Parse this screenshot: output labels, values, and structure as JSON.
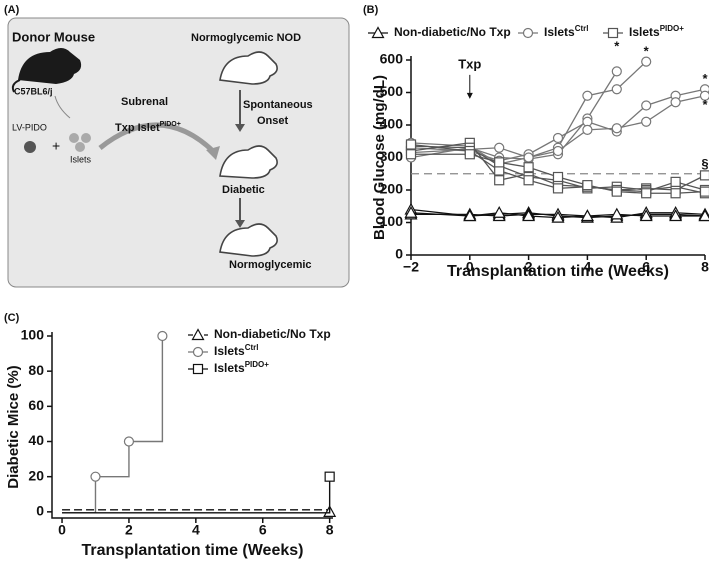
{
  "diagram": {
    "panel_label": "(A)",
    "donor_title": "Donor Mouse",
    "strain": "C57BL6/j",
    "vector": "LV-PIDO",
    "plus": "+",
    "islets": "Islets",
    "route": "Subrenal",
    "txp": "Txp Islet",
    "txp_sup": "PIDO+",
    "recipient_title": "Normoglycemic NOD",
    "onset_1": "Spontaneous",
    "onset_2": "Onset",
    "diabetic": "Diabetic",
    "normoglycemic": "Normoglycemic"
  },
  "chart_data": [
    {
      "type": "line",
      "panel_label": "(B)",
      "y_label": "Blood Glucose (mg/dL)",
      "x_label": "Transplantation time (Weeks)",
      "xlim": [
        -2,
        8
      ],
      "xticks": [
        {
          "value": -2,
          "label": "−2"
        },
        0,
        2,
        4,
        6,
        8
      ],
      "ylim": [
        0,
        600
      ],
      "yticks": [
        0,
        100,
        200,
        300,
        400,
        500,
        600
      ],
      "threshold": 250,
      "annotations": [
        {
          "text": "Txp",
          "x": 0,
          "y": 585
        },
        {
          "text": "*",
          "x": 5,
          "y": 640
        },
        {
          "text": "*",
          "x": 6,
          "y": 625
        },
        {
          "text": "*",
          "x": 8,
          "y": 540
        },
        {
          "text": "*",
          "x": 8,
          "y": 460
        },
        {
          "text": "§",
          "x": 8,
          "y": 278
        }
      ],
      "series": [
        {
          "name": "Non-diabetic/No Txp",
          "marker": "triangle",
          "color": "#111111",
          "mice": [
            {
              "x": [
                -2,
                0,
                1,
                2,
                3,
                4,
                5,
                6,
                7,
                8
              ],
              "values": [
                140,
                120,
                125,
                130,
                120,
                115,
                120,
                125,
                125,
                120
              ]
            },
            {
              "x": [
                -2,
                0,
                1,
                2,
                3,
                4,
                5,
                6,
                7,
                8
              ],
              "values": [
                125,
                125,
                120,
                125,
                125,
                120,
                115,
                130,
                130,
                125
              ]
            },
            {
              "x": [
                -2,
                0,
                1,
                2,
                3,
                4,
                5,
                6,
                7,
                8
              ],
              "values": [
                130,
                120,
                130,
                120,
                115,
                120,
                125,
                120,
                120,
                120
              ]
            }
          ]
        },
        {
          "name": "Islets",
          "superscript": "Ctrl",
          "marker": "circle",
          "color": "#777777",
          "mice": [
            {
              "x": [
                -2,
                0,
                1,
                2,
                3,
                4,
                5
              ],
              "values": [
                300,
                330,
                300,
                295,
                310,
                420,
                565
              ]
            },
            {
              "x": [
                -2,
                0,
                1,
                2,
                3,
                4,
                5,
                6
              ],
              "values": [
                345,
                335,
                280,
                300,
                330,
                490,
                510,
                595
              ]
            },
            {
              "x": [
                -2,
                0,
                1,
                2,
                3,
                4,
                5,
                6,
                7,
                8
              ],
              "values": [
                330,
                320,
                290,
                310,
                360,
                410,
                380,
                460,
                490,
                510
              ]
            },
            {
              "x": [
                -2,
                0,
                1,
                2,
                3,
                4,
                5,
                6,
                7,
                8
              ],
              "values": [
                315,
                325,
                330,
                300,
                320,
                385,
                390,
                410,
                470,
                490
              ]
            }
          ]
        },
        {
          "name": "Islets",
          "superscript": "PIDO+",
          "marker": "square",
          "color": "#555555",
          "mice": [
            {
              "x": [
                -2,
                0,
                1,
                2,
                3,
                4,
                5,
                6,
                7,
                8
              ],
              "values": [
                320,
                345,
                230,
                250,
                215,
                210,
                200,
                205,
                200,
                245
              ]
            },
            {
              "x": [
                -2,
                0,
                1,
                2,
                3,
                4,
                5,
                6,
                7,
                8
              ],
              "values": [
                335,
                330,
                275,
                240,
                230,
                205,
                210,
                200,
                210,
                190
              ]
            },
            {
              "x": [
                -2,
                0,
                1,
                2,
                3,
                4,
                5,
                6,
                7,
                8
              ],
              "values": [
                340,
                320,
                260,
                230,
                205,
                210,
                200,
                195,
                225,
                200
              ]
            },
            {
              "x": [
                -2,
                0,
                1,
                2,
                3,
                4,
                5,
                6,
                7,
                8
              ],
              "values": [
                310,
                310,
                285,
                270,
                240,
                215,
                195,
                190,
                190,
                195
              ]
            }
          ]
        }
      ]
    },
    {
      "type": "step",
      "panel_label": "(C)",
      "y_label": "Diabetic Mice (%)",
      "x_label": "Transplantation time (Weeks)",
      "xlim": [
        -0.3,
        8.1
      ],
      "xticks": [
        0,
        2,
        4,
        6,
        8
      ],
      "ylim": [
        -3.5,
        100
      ],
      "yticks": [
        0,
        20,
        40,
        60,
        80,
        100
      ],
      "series": [
        {
          "name": "Non-diabetic/No Txp",
          "marker": "triangle",
          "color": "#111111",
          "dash": true,
          "x": [
            8
          ],
          "values": [
            0
          ]
        },
        {
          "name": "Islets",
          "superscript": "Ctrl",
          "marker": "circle",
          "color": "#777777",
          "x": [
            1,
            2,
            3
          ],
          "values": [
            20,
            40,
            100
          ]
        },
        {
          "name": "Islets",
          "superscript": "PIDO+",
          "marker": "square",
          "color": "#111111",
          "x": [
            8
          ],
          "values": [
            20
          ]
        }
      ]
    }
  ]
}
